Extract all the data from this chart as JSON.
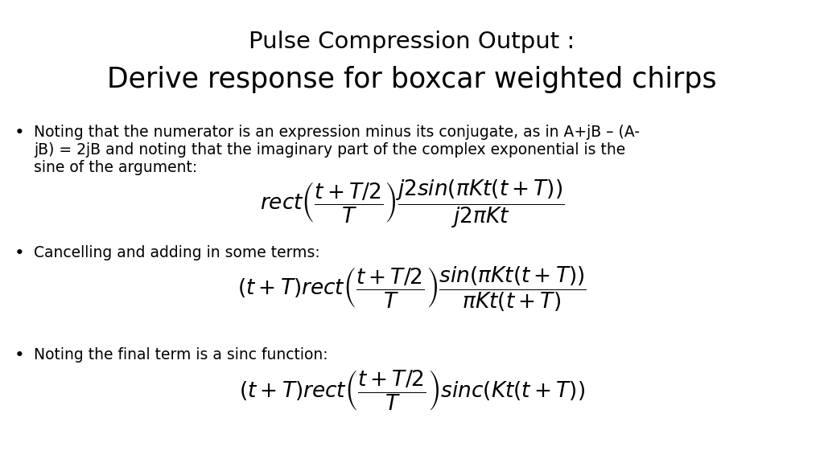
{
  "title_line1": "Pulse Compression Output :",
  "title_line2": "Derive response for boxcar weighted chirps",
  "bullet1_lines": [
    "Noting that the numerator is an expression minus its conjugate, as in A+jB – (A-",
    "jB) = 2jB and noting that the imaginary part of the complex exponential is the",
    "sine of the argument:"
  ],
  "bullet2_text": "Cancelling and adding in some terms:",
  "bullet3_text": "Noting the final term is a sinc function:",
  "bg_color": "#ffffff",
  "text_color": "#000000",
  "title1_fontsize": 21,
  "title2_fontsize": 25,
  "body_fontsize": 13.5,
  "formula_fontsize": 19
}
